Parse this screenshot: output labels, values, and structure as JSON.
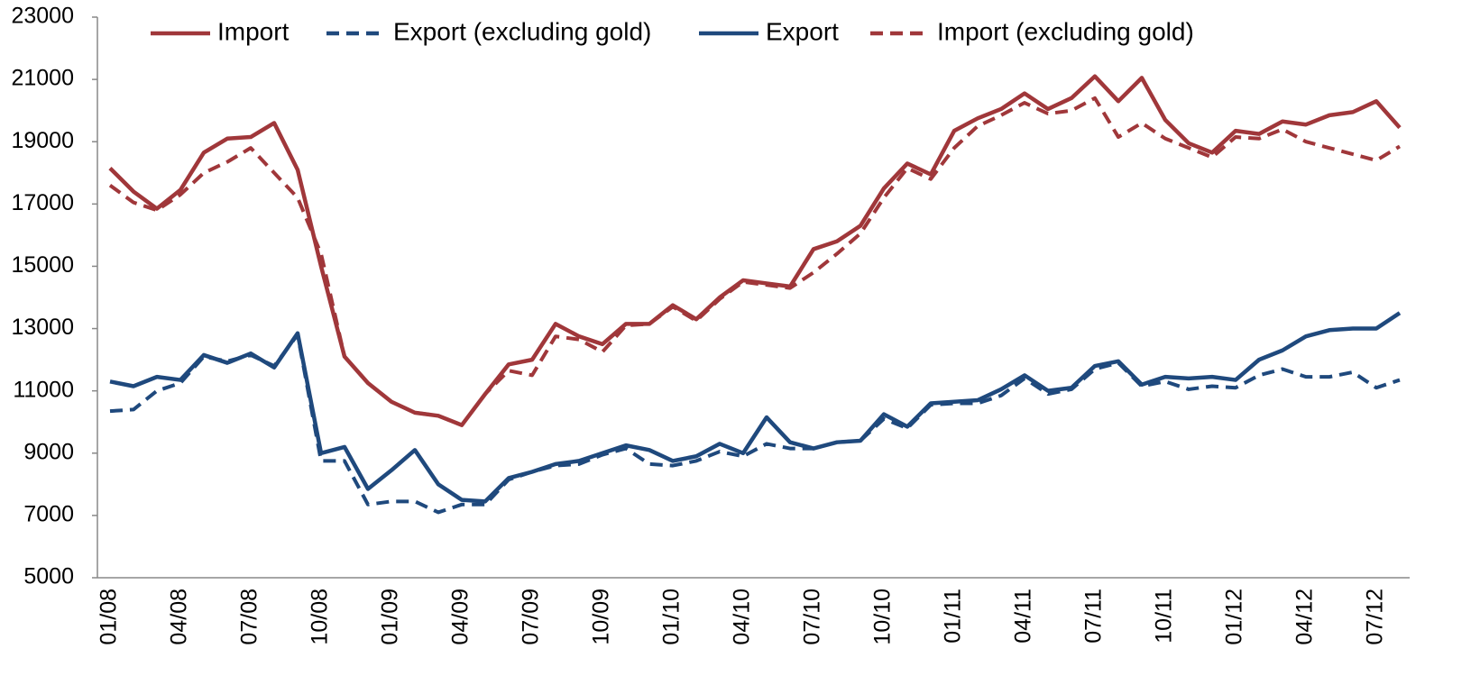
{
  "chart_data": {
    "type": "line",
    "categories": [
      "01/08",
      null,
      null,
      "04/08",
      null,
      null,
      "07/08",
      null,
      null,
      "10/08",
      null,
      null,
      "01/09",
      null,
      null,
      "04/09",
      null,
      null,
      "07/09",
      null,
      null,
      "10/09",
      null,
      null,
      "01/10",
      null,
      null,
      "04/10",
      null,
      null,
      "07/10",
      null,
      null,
      "10/10",
      null,
      null,
      "01/11",
      null,
      null,
      "04/11",
      null,
      null,
      "07/11",
      null,
      null,
      "10/11",
      null,
      null,
      "01/12",
      null,
      null,
      "04/12",
      null,
      null,
      "07/12",
      null
    ],
    "series": [
      {
        "name": "Import",
        "color": "#a0373a",
        "dash": false,
        "values": [
          18150,
          17400,
          16850,
          17450,
          18650,
          19100,
          19150,
          19600,
          18100,
          15000,
          12100,
          11250,
          10650,
          10300,
          10200,
          9900,
          10900,
          11850,
          12000,
          13150,
          12750,
          12500,
          13150,
          13150,
          13750,
          13300,
          14000,
          14550,
          14450,
          14350,
          15550,
          15800,
          16300,
          17500,
          18300,
          17950,
          19350,
          19750,
          20050,
          20550,
          20050,
          20400,
          21100,
          20300,
          21050,
          19700,
          18950,
          18650,
          19350,
          19250,
          19650,
          19550,
          19850,
          19950,
          20300,
          19450
        ]
      },
      {
        "name": "Export (excluding gold)",
        "color": "#1f497d",
        "dash": true,
        "values": [
          10350,
          10400,
          11000,
          11250,
          12100,
          11950,
          12150,
          11800,
          12800,
          8750,
          8750,
          7350,
          7450,
          7450,
          7100,
          7350,
          7350,
          8150,
          8400,
          8600,
          8650,
          8950,
          9150,
          8650,
          8600,
          8750,
          9050,
          8900,
          9300,
          9150,
          9150,
          9350,
          9400,
          10100,
          9800,
          10550,
          10600,
          10600,
          10850,
          11400,
          10900,
          11050,
          11700,
          11900,
          11150,
          11300,
          11050,
          11150,
          11100,
          11500,
          11700,
          11450,
          11450,
          11600,
          11100,
          11350
        ]
      },
      {
        "name": "Export",
        "color": "#1f497d",
        "dash": false,
        "values": [
          11300,
          11150,
          11450,
          11350,
          12150,
          11900,
          12200,
          11750,
          12850,
          9000,
          9200,
          7850,
          8450,
          9100,
          8000,
          7500,
          7450,
          8200,
          8400,
          8650,
          8750,
          9000,
          9250,
          9100,
          8750,
          8900,
          9300,
          9000,
          10150,
          9350,
          9150,
          9350,
          9400,
          10250,
          9850,
          10600,
          10650,
          10700,
          11050,
          11500,
          11000,
          11100,
          11800,
          11950,
          11200,
          11450,
          11400,
          11450,
          11350,
          12000,
          12300,
          12750,
          12950,
          13000,
          13000,
          13500
        ]
      },
      {
        "name": "Import (excluding gold)",
        "color": "#a0373a",
        "dash": true,
        "values": [
          17600,
          17050,
          16800,
          17300,
          18000,
          18350,
          18800,
          18000,
          17200,
          15400,
          12100,
          11250,
          10650,
          10300,
          10200,
          9900,
          10900,
          11650,
          11500,
          12750,
          12650,
          12250,
          13100,
          13150,
          13700,
          13250,
          13950,
          14500,
          14400,
          14300,
          14800,
          15400,
          16050,
          17200,
          18150,
          17800,
          18800,
          19500,
          19850,
          20250,
          19900,
          20000,
          20400,
          19150,
          19600,
          19100,
          18800,
          18500,
          19150,
          19100,
          19400,
          19000,
          18800,
          18600,
          18400,
          18850
        ]
      }
    ],
    "ylim": [
      5000,
      23000
    ],
    "yticks": [
      5000,
      7000,
      9000,
      11000,
      13000,
      15000,
      17000,
      19000,
      21000,
      23000
    ],
    "grid": false,
    "legend": "top"
  }
}
